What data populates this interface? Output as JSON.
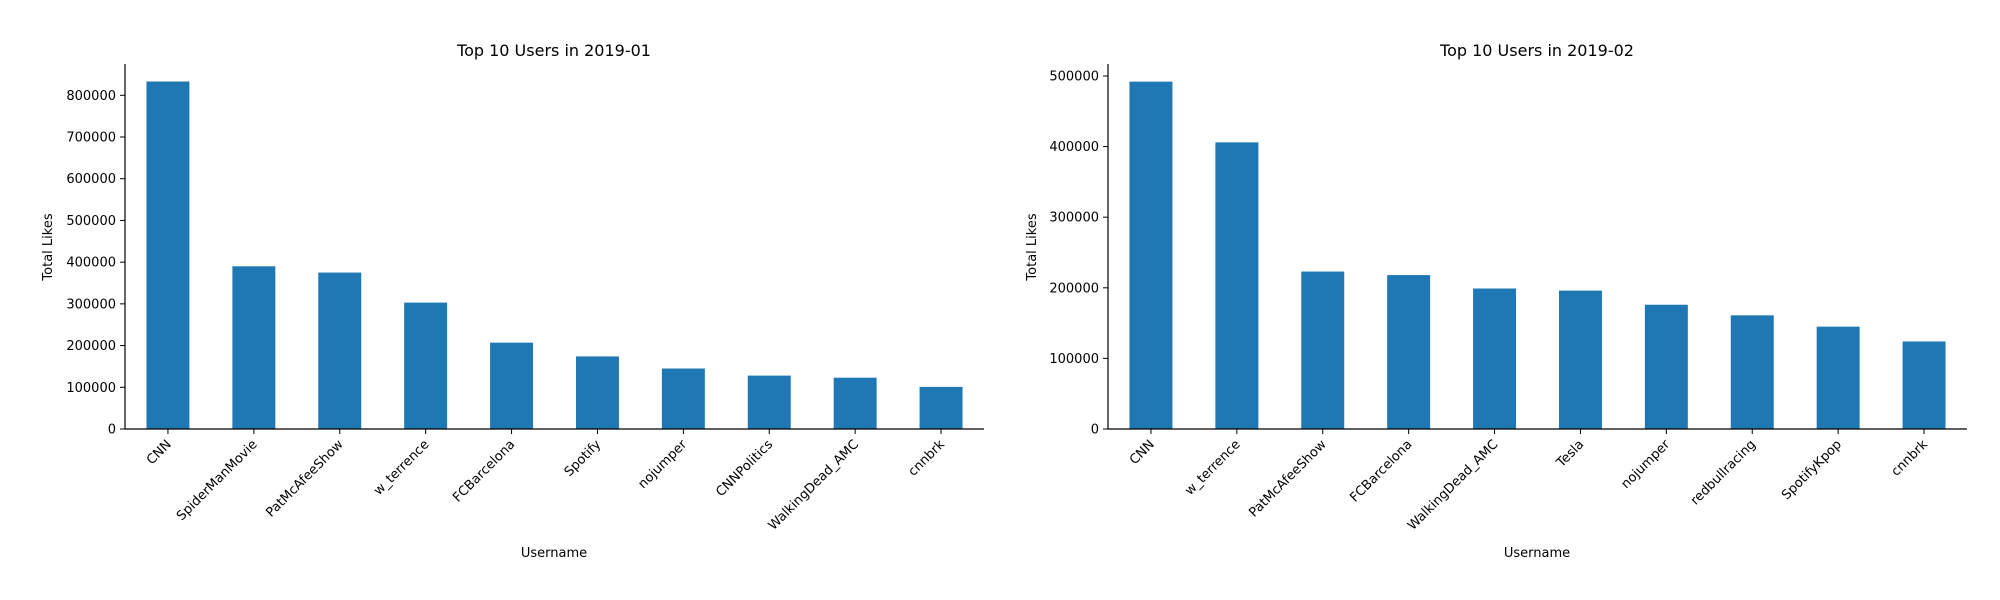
{
  "colors": {
    "bar": "#1f77b4",
    "axis": "#000000",
    "background": "#ffffff"
  },
  "chart_data": [
    {
      "type": "bar",
      "title": "Top 10 Users in 2019-01",
      "xlabel": "Username",
      "ylabel": "Total Likes",
      "categories": [
        "CNN",
        "SpiderManMovie",
        "PatMcAfeeShow",
        "w_terrence",
        "FCBarcelona",
        "Spotify",
        "nojumper",
        "CNNPolitics",
        "WalkingDead_AMC",
        "cnnbrk"
      ],
      "values": [
        833000,
        390000,
        375000,
        303000,
        207000,
        174000,
        145000,
        128000,
        123000,
        101000
      ],
      "ylim": [
        0,
        875000
      ],
      "yticks": [
        0,
        100000,
        200000,
        300000,
        400000,
        500000,
        600000,
        700000,
        800000
      ],
      "ytick_labels": [
        "0",
        "100000",
        "200000",
        "300000",
        "400000",
        "500000",
        "600000",
        "700000",
        "800000"
      ],
      "grid": false,
      "legend": "none"
    },
    {
      "type": "bar",
      "title": "Top 10 Users in 2019-02",
      "xlabel": "Username",
      "ylabel": "Total Likes",
      "categories": [
        "CNN",
        "w_terrence",
        "PatMcAfeeShow",
        "FCBarcelona",
        "WalkingDead_AMC",
        "Tesla",
        "nojumper",
        "redbullracing",
        "SpotifyKpop",
        "cnnbrk"
      ],
      "values": [
        492000,
        406000,
        223000,
        218000,
        199000,
        196000,
        176000,
        161000,
        145000,
        124000
      ],
      "ylim": [
        0,
        517000
      ],
      "yticks": [
        0,
        100000,
        200000,
        300000,
        400000,
        500000
      ],
      "ytick_labels": [
        "0",
        "100000",
        "200000",
        "300000",
        "400000",
        "500000"
      ],
      "grid": false,
      "legend": "none"
    }
  ]
}
